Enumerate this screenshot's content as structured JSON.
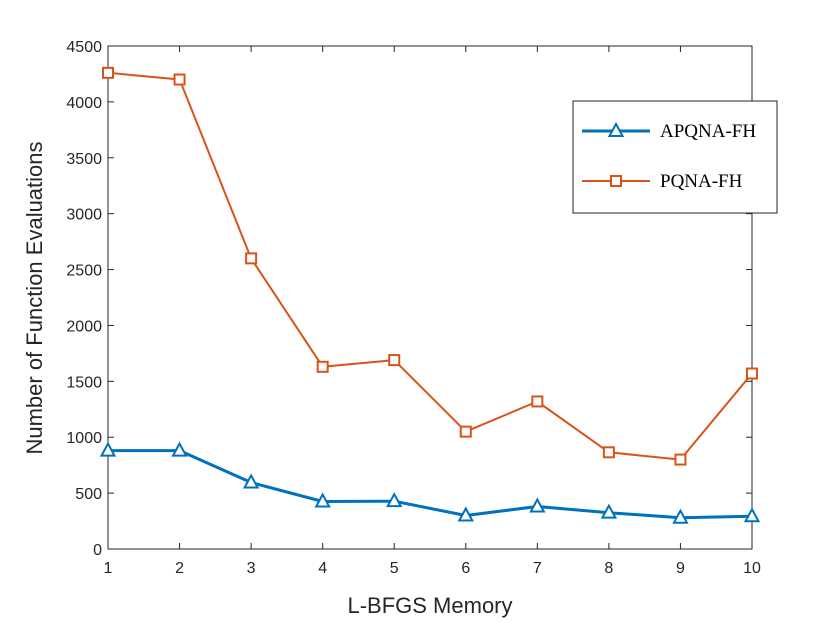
{
  "chart_data": {
    "type": "line",
    "xlabel": "L-BFGS Memory",
    "ylabel": "Number of Function Evaluations",
    "x": [
      1,
      2,
      3,
      4,
      5,
      6,
      7,
      8,
      9,
      10
    ],
    "xlim": [
      1,
      10
    ],
    "ylim": [
      0,
      4500
    ],
    "xticks": [
      1,
      2,
      3,
      4,
      5,
      6,
      7,
      8,
      9,
      10
    ],
    "yticks": [
      0,
      500,
      1000,
      1500,
      2000,
      2500,
      3000,
      3500,
      4000,
      4500
    ],
    "grid": false,
    "legend_position": "top-right",
    "series": [
      {
        "name": "APQNA-FH",
        "marker": "triangle",
        "color": "#0072BD",
        "values": [
          880,
          880,
          595,
          425,
          428,
          300,
          380,
          325,
          280,
          293
        ]
      },
      {
        "name": "PQNA-FH",
        "marker": "square",
        "color": "#D95319",
        "values": [
          4260,
          4200,
          2600,
          1630,
          1690,
          1050,
          1320,
          865,
          800,
          1570
        ]
      }
    ]
  }
}
